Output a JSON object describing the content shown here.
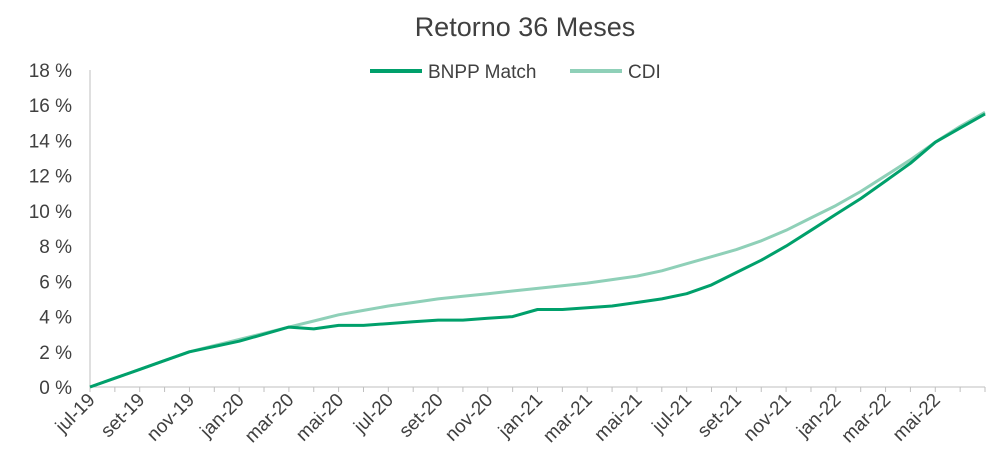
{
  "chart_data": {
    "type": "line",
    "title": "Retorno 36 Meses",
    "categories": [
      "jul-19",
      null,
      "set-19",
      null,
      "nov-19",
      null,
      "jan-20",
      null,
      "mar-20",
      null,
      "mai-20",
      null,
      "jul-20",
      null,
      "set-20",
      null,
      "nov-20",
      null,
      "jan-21",
      null,
      "mar-21",
      null,
      "mai-21",
      null,
      "jul-21",
      null,
      "set-21",
      null,
      "nov-21",
      null,
      "jan-22",
      null,
      "mar-22",
      null,
      "mai-22",
      null,
      null
    ],
    "series": [
      {
        "name": "BNPP Match",
        "color": "#00a06b",
        "values": [
          0,
          0.5,
          1.0,
          1.5,
          2.0,
          2.3,
          2.6,
          3.0,
          3.4,
          3.3,
          3.5,
          3.5,
          3.6,
          3.7,
          3.8,
          3.8,
          3.9,
          4.0,
          4.4,
          4.4,
          4.5,
          4.6,
          4.8,
          5.0,
          5.3,
          5.8,
          6.5,
          7.2,
          8.0,
          8.9,
          9.8,
          10.7,
          11.7,
          12.7,
          13.9,
          14.7,
          15.5
        ]
      },
      {
        "name": "CDI",
        "color": "#8fd0b8",
        "values": [
          0,
          0.5,
          1.0,
          1.5,
          2.0,
          2.35,
          2.7,
          3.05,
          3.4,
          3.75,
          4.1,
          4.35,
          4.6,
          4.8,
          5.0,
          5.15,
          5.3,
          5.45,
          5.6,
          5.75,
          5.9,
          6.1,
          6.3,
          6.6,
          7.0,
          7.4,
          7.8,
          8.3,
          8.9,
          9.6,
          10.3,
          11.1,
          12.0,
          12.9,
          13.9,
          14.8,
          15.6
        ]
      }
    ],
    "ylim": [
      0,
      18
    ],
    "yticks": [
      {
        "value": 0,
        "label": "0 %"
      },
      {
        "value": 2,
        "label": "2 %"
      },
      {
        "value": 4,
        "label": "4 %"
      },
      {
        "value": 6,
        "label": "6 %"
      },
      {
        "value": 8,
        "label": "8 %"
      },
      {
        "value": 10,
        "label": "10 %"
      },
      {
        "value": 12,
        "label": "12 %"
      },
      {
        "value": 14,
        "label": "14 %"
      },
      {
        "value": 16,
        "label": "16 %"
      },
      {
        "value": 18,
        "label": "18 %"
      }
    ],
    "legend": "top"
  }
}
